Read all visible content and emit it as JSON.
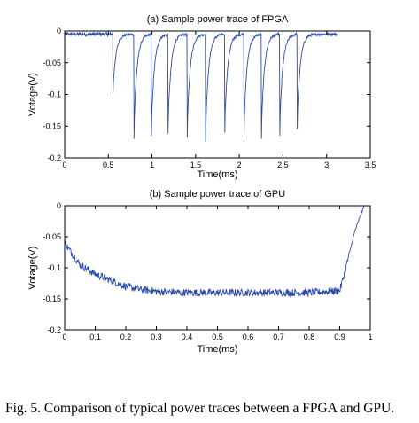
{
  "chart_data": [
    {
      "type": "line",
      "title": "(a) Sample power trace of FPGA",
      "xlabel": "Time(ms)",
      "ylabel": "Votage(V)",
      "xlim": [
        0,
        3.5
      ],
      "ylim": [
        -0.2,
        0
      ],
      "xticks": [
        "0",
        "0.5",
        "1",
        "1.5",
        "2",
        "2.5",
        "3",
        "3.5"
      ],
      "yticks": [
        "0",
        "-0.05",
        "-0.1",
        "-0.15",
        "-0.2"
      ],
      "color": "#2b4aa8",
      "baseline": -0.005,
      "trace_end": 3.12,
      "spikes": [
        {
          "x": 0.55,
          "y": -0.1
        },
        {
          "x": 0.79,
          "y": -0.17
        },
        {
          "x": 0.99,
          "y": -0.165
        },
        {
          "x": 1.18,
          "y": -0.162
        },
        {
          "x": 1.4,
          "y": -0.168
        },
        {
          "x": 1.61,
          "y": -0.175
        },
        {
          "x": 1.83,
          "y": -0.16
        },
        {
          "x": 2.05,
          "y": -0.168
        },
        {
          "x": 2.25,
          "y": -0.17
        },
        {
          "x": 2.46,
          "y": -0.165
        },
        {
          "x": 2.66,
          "y": -0.155
        }
      ]
    },
    {
      "type": "line",
      "title": "(b) Sample power trace of GPU",
      "xlabel": "Time(ms)",
      "ylabel": "Votage(V)",
      "xlim": [
        0,
        1
      ],
      "ylim": [
        -0.2,
        0
      ],
      "xticks": [
        "0",
        "0.1",
        "0.2",
        "0.3",
        "0.4",
        "0.5",
        "0.6",
        "0.7",
        "0.8",
        "0.9",
        "1"
      ],
      "yticks": [
        "0",
        "-0.05",
        "-0.1",
        "-0.15",
        "-0.2"
      ],
      "color": "#2b4aa8",
      "x": [
        0,
        0.05,
        0.1,
        0.15,
        0.2,
        0.25,
        0.3,
        0.4,
        0.5,
        0.6,
        0.7,
        0.8,
        0.9,
        0.92,
        0.95,
        0.98
      ],
      "y": [
        -0.06,
        -0.095,
        -0.11,
        -0.12,
        -0.13,
        -0.135,
        -0.138,
        -0.14,
        -0.14,
        -0.14,
        -0.14,
        -0.14,
        -0.137,
        -0.1,
        -0.04,
        0
      ]
    }
  ],
  "caption": "Fig. 5.  Comparison of typical power traces between a FPGA and GPU."
}
